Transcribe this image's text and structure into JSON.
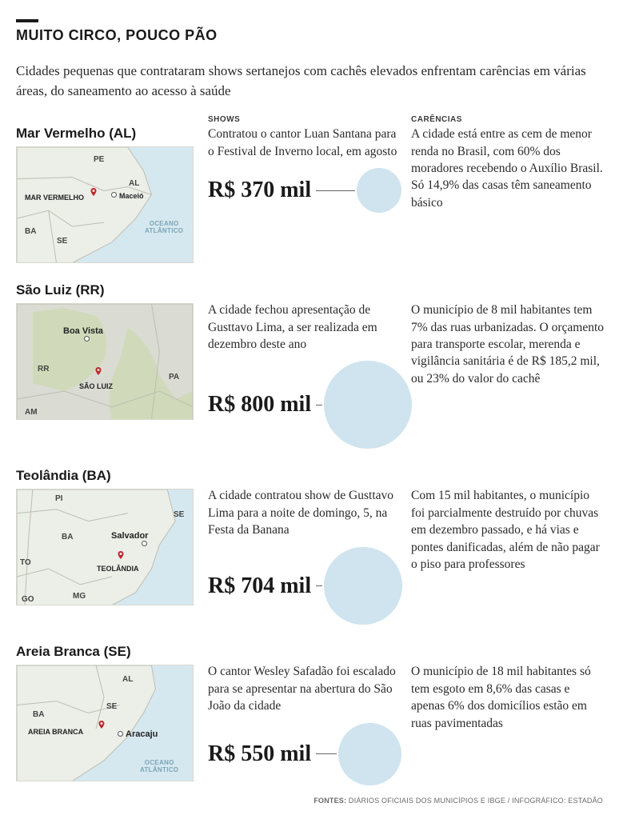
{
  "title": "MUITO CIRCO, POUCO PÃO",
  "subtitle": "Cidades pequenas que contrataram shows sertanejos com cachês elevados  enfrentam carências em várias áreas, do saneamento ao acesso à saúde",
  "headers": {
    "shows": "SHOWS",
    "carencias": "CARÊNCIAS"
  },
  "colors": {
    "bubble": "#cfe4ee",
    "land": "#eceee8",
    "water": "#d6e8ef",
    "border": "#bdbdb0",
    "pin": "#c1272d",
    "veg": "#c9d8a8"
  },
  "bubble_sizes": {
    "min": 56,
    "max": 110
  },
  "value_range": {
    "min": 370,
    "max": 800
  },
  "cities": [
    {
      "id": "mar-vermelho",
      "name": "Mar Vermelho (AL)",
      "shows_text": "Contratou o cantor Luan Santana para o Festival de Inverno local, em agosto",
      "value_label": "R$ 370 mil",
      "value_num": 370,
      "carencias_text": "A cidade está entre as cem de menor renda no Brasil, com 60% dos moradores recebendo o Auxílio Brasil. Só 14,9% das casas têm saneamento básico",
      "map": {
        "states": [
          "PE",
          "AL",
          "BA",
          "SE"
        ],
        "capital": "Maceió",
        "city_label": "MAR VERMELHO",
        "ocean": "OCEANO ATLÂNTICO"
      }
    },
    {
      "id": "sao-luiz",
      "name": "São Luiz (RR)",
      "shows_text": "A cidade fechou apresentação de Gusttavo Lima, a ser realizada em dezembro deste ano",
      "value_label": "R$ 800 mil",
      "value_num": 800,
      "carencias_text": "O município de 8 mil habitantes tem 7% das ruas urbanizadas. O orçamento para transporte escolar, merenda e vigilância sanitária é de R$ 185,2 mil, ou 23% do valor do cachê",
      "map": {
        "states": [
          "RR",
          "PA",
          "AM"
        ],
        "capital": "Boa Vista",
        "city_label": "SÃO LUIZ",
        "ocean": ""
      }
    },
    {
      "id": "teolandia",
      "name": "Teolândia (BA)",
      "shows_text": "A cidade contratou show de Gusttavo Lima para a noite de domingo, 5, na Festa da Banana",
      "value_label": "R$ 704 mil",
      "value_num": 704,
      "carencias_text": "Com 15 mil habitantes, o município foi parcialmente destruído por chuvas em dezembro passado, e há vias e pontes danificadas, além de não pagar o piso para professores",
      "map": {
        "states": [
          "PI",
          "BA",
          "SE",
          "TO",
          "GO",
          "MG"
        ],
        "capital": "Salvador",
        "city_label": "TEOLÂNDIA",
        "ocean": ""
      }
    },
    {
      "id": "areia-branca",
      "name": "Areia Branca (SE)",
      "shows_text": "O cantor Wesley Safadão foi escalado para se apresentar na abertura do São João da cidade",
      "value_label": "R$ 550 mil",
      "value_num": 550,
      "carencias_text": "O município de 18 mil habitantes só tem esgoto em 8,6% das casas e apenas 6% dos domicílios estão em ruas pavimentadas",
      "map": {
        "states": [
          "BA",
          "AL",
          "SE"
        ],
        "capital": "Aracaju",
        "city_label": "AREIA BRANCA",
        "ocean": "OCEANO ATLÂNTICO"
      }
    }
  ],
  "footer": {
    "label": "FONTES:",
    "text": "DIÁRIOS OFICIAIS DOS MUNICÍPIOS E IBGE / INFOGRÁFICO: ESTADÃO"
  }
}
